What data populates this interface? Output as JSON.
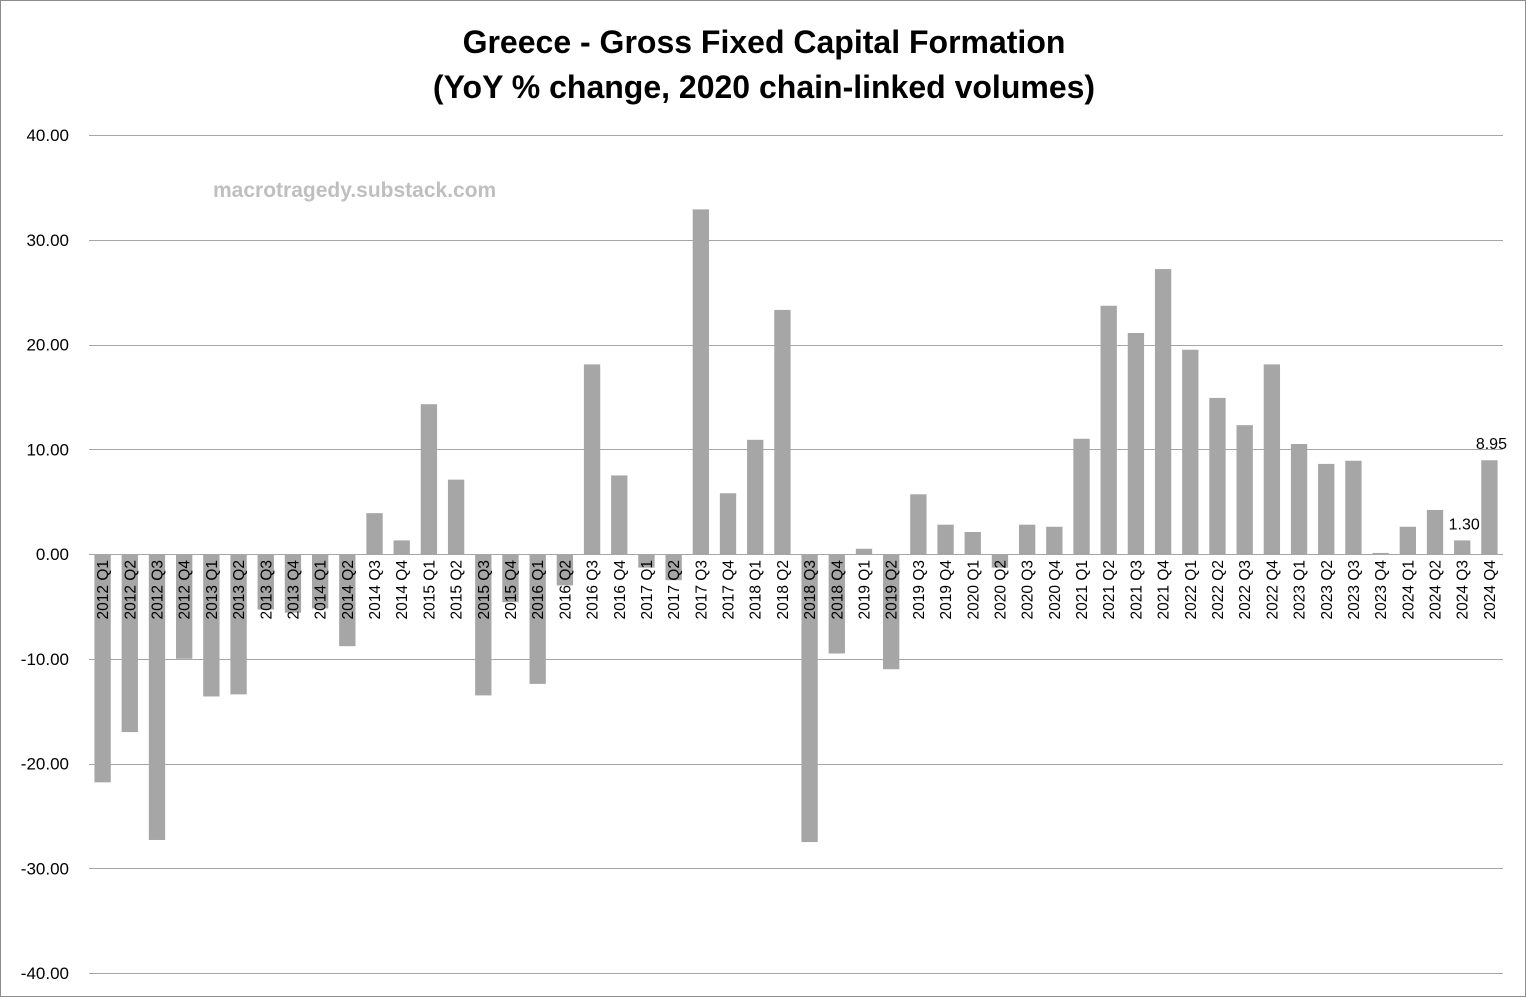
{
  "colors": {
    "bar": "#a6a6a6",
    "gridline": "#a6a6a6",
    "axis_text": "#000000",
    "watermark": "#bfbfbf"
  },
  "chart_data": {
    "type": "bar",
    "title": "Greece - Gross Fixed Capital Formation",
    "subtitle": "(YoY % change, 2020 chain-linked volumes)",
    "watermark": "macrotragedy.substack.com",
    "xlabel": "",
    "ylabel": "",
    "ylim": [
      -40,
      40
    ],
    "yticks": [
      40,
      30,
      20,
      10,
      0,
      -10,
      -20,
      -30,
      -40
    ],
    "ytick_labels": [
      "40.00",
      "30.00",
      "20.00",
      "10.00",
      "0.00",
      "-10.00",
      "-20.00",
      "-30.00",
      "-40.00"
    ],
    "grid": true,
    "legend": "none",
    "categories": [
      "2012 Q1",
      "2012 Q2",
      "2012 Q3",
      "2012 Q4",
      "2013 Q1",
      "2013 Q2",
      "2013 Q3",
      "2013 Q4",
      "2014 Q1",
      "2014 Q2",
      "2014 Q3",
      "2014 Q4",
      "2015 Q1",
      "2015 Q2",
      "2015 Q3",
      "2015 Q4",
      "2016 Q1",
      "2016 Q2",
      "2016 Q3",
      "2016 Q4",
      "2017 Q1",
      "2017 Q2",
      "2017 Q3",
      "2017 Q4",
      "2018 Q1",
      "2018 Q2",
      "2018 Q3",
      "2018 Q4",
      "2019 Q1",
      "2019 Q2",
      "2019 Q3",
      "2019 Q4",
      "2020 Q1",
      "2020 Q2",
      "2020 Q3",
      "2020 Q4",
      "2021 Q1",
      "2021 Q2",
      "2021 Q3",
      "2021 Q4",
      "2022 Q1",
      "2022 Q2",
      "2022 Q3",
      "2022 Q4",
      "2023 Q1",
      "2023 Q2",
      "2023 Q3",
      "2023 Q4",
      "2024 Q1",
      "2024 Q2",
      "2024 Q3",
      "2024 Q4"
    ],
    "series": [
      {
        "name": "YoY % change",
        "values": [
          -21.8,
          -17.0,
          -27.3,
          -10.0,
          -13.6,
          -13.4,
          -5.3,
          -5.6,
          -5.2,
          -8.8,
          3.9,
          1.3,
          14.3,
          7.1,
          -13.5,
          -4.6,
          -12.4,
          -3.0,
          18.1,
          7.5,
          -1.3,
          -2.5,
          32.9,
          5.8,
          10.9,
          23.3,
          -27.5,
          -9.5,
          0.5,
          -11.0,
          5.7,
          2.8,
          2.1,
          -1.3,
          2.8,
          2.6,
          11.0,
          23.7,
          21.1,
          27.2,
          19.5,
          14.9,
          12.3,
          18.1,
          10.5,
          8.6,
          8.9,
          0.1,
          2.6,
          4.2,
          1.3,
          8.95
        ]
      }
    ],
    "data_labels": [
      {
        "category": "2024 Q3",
        "text": "1.30"
      },
      {
        "category": "2024 Q4",
        "text": "8.95"
      }
    ]
  }
}
